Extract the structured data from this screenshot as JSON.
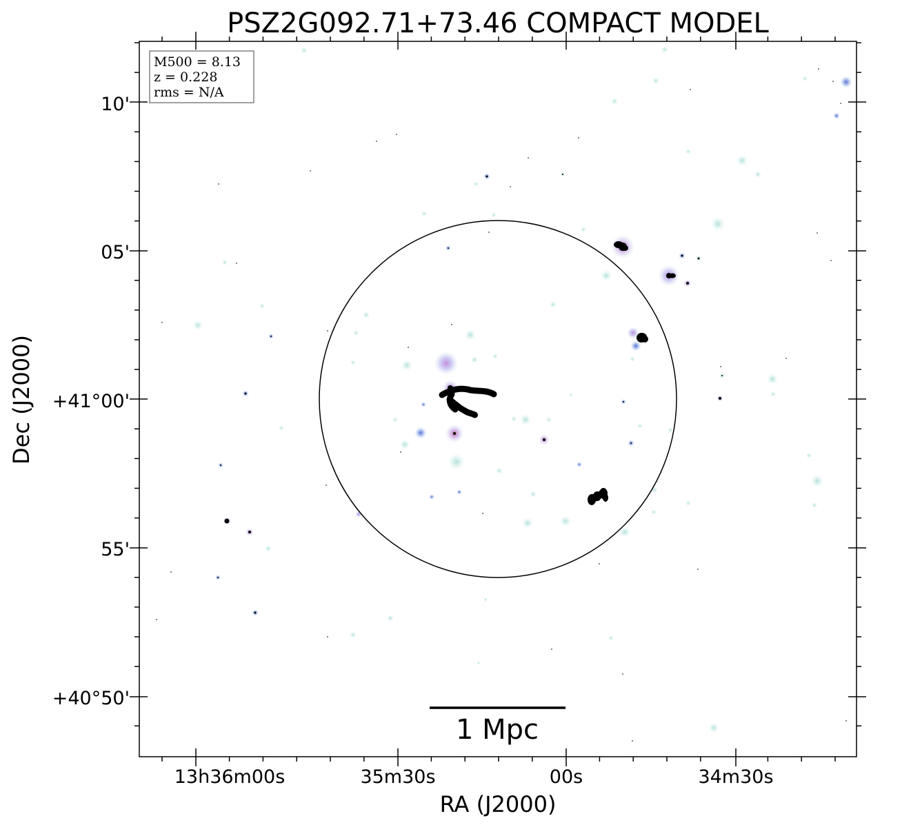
{
  "title": "PSZ2G092.71+73.46 COMPACT MODEL",
  "axes": {
    "xlabel": "RA (J2000)",
    "ylabel": "Dec (J2000)",
    "x_ticks": [
      "13h36m00s",
      "35m30s",
      "00s",
      "34m30s"
    ],
    "y_ticks": [
      "10'",
      "05'",
      "+41°00'",
      "55'",
      "+40°50'"
    ]
  },
  "info_box": {
    "m500": "M500 = 8.13",
    "z": "z = 0.228",
    "rms": "rms = N/A"
  },
  "scale_bar": {
    "label": "1 Mpc"
  },
  "colors": {
    "axis": "#000000",
    "source_core": "#000000",
    "halo_cyan": "#b9e6e0",
    "halo_purple": "#b7a0e8",
    "halo_pink": "#e58aa8"
  }
}
